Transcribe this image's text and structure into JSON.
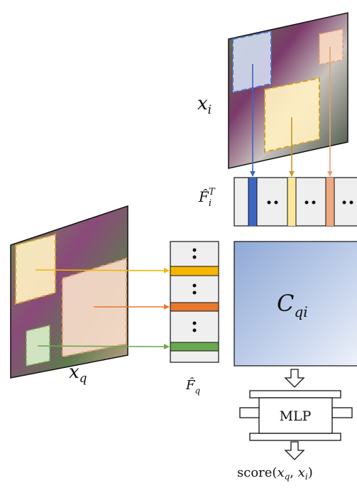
{
  "labels": {
    "image_i": {
      "base": "x",
      "sub": "i"
    },
    "feature_i": {
      "base": "F̂",
      "sub": "i",
      "sup": "T"
    },
    "correlation": {
      "base": "C",
      "sub": "qi"
    },
    "image_q": {
      "base": "x",
      "sub": "q"
    },
    "feature_q": {
      "base": "F̂",
      "sub": "q"
    },
    "mlp": "MLP",
    "score": {
      "prefix": "score(",
      "a": "x",
      "a_sub": "q",
      "sep": ", ",
      "b": "x",
      "b_sub": "i",
      "suffix": ")"
    }
  }
}
